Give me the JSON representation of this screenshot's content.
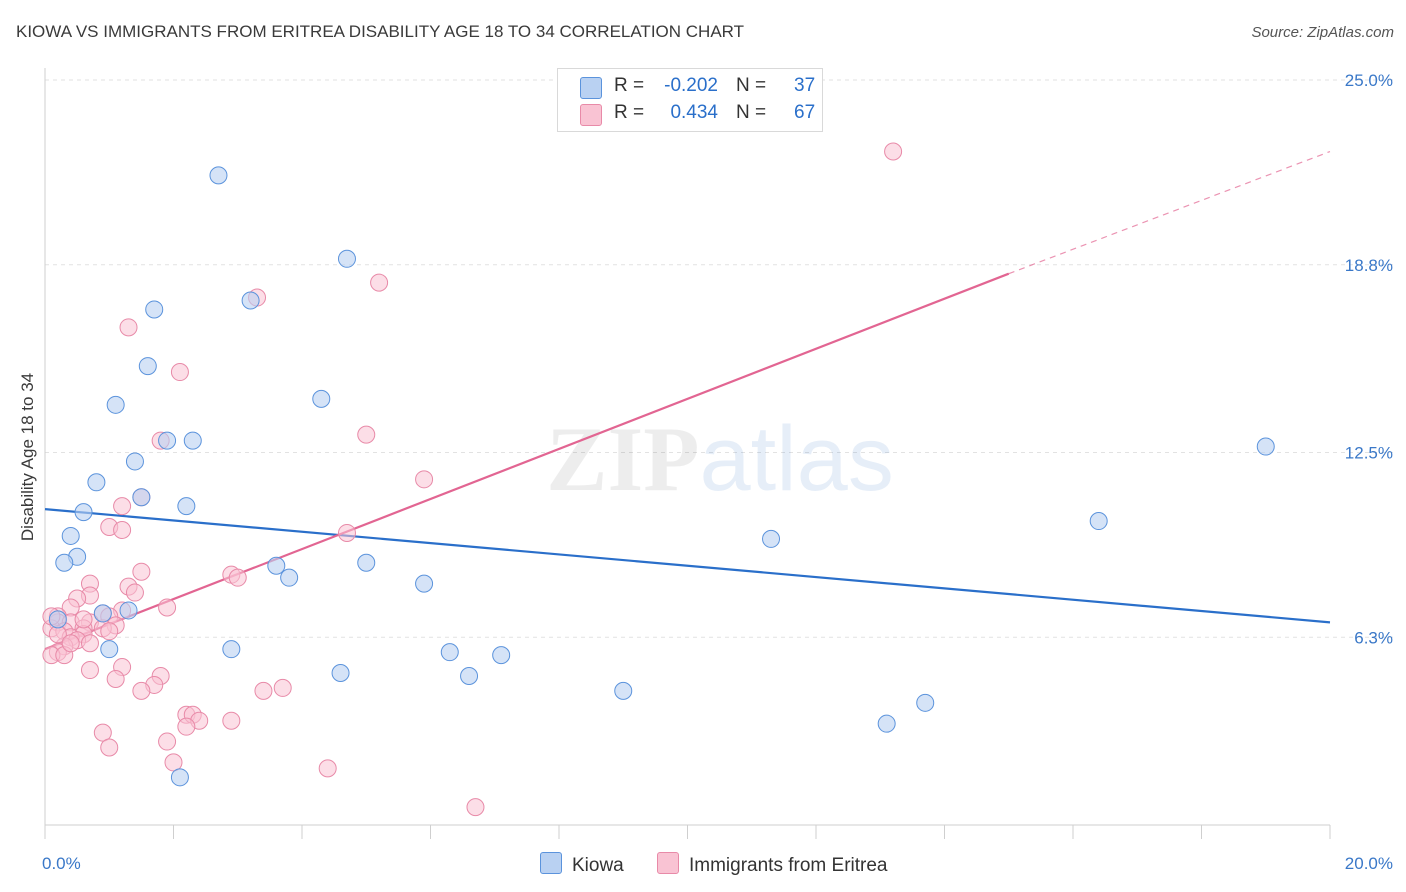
{
  "header": {
    "title": "KIOWA VS IMMIGRANTS FROM ERITREA DISABILITY AGE 18 TO 34 CORRELATION CHART",
    "source": "Source: ZipAtlas.com"
  },
  "legend": {
    "rows": [
      {
        "r_label": "R =",
        "r_value": "-0.202",
        "n_label": "N =",
        "n_value": "37"
      },
      {
        "r_label": "R =",
        "r_value": "0.434",
        "n_label": "N =",
        "n_value": "67"
      }
    ],
    "bottom": [
      "Kiowa",
      "Immigrants from Eritrea"
    ]
  },
  "colors": {
    "kiowa_fill": "#b9d1f2",
    "kiowa_stroke": "#5b93dc",
    "kiowa_line": "#2a6fca",
    "eritrea_fill": "#f9c3d3",
    "eritrea_stroke": "#e88aa8",
    "eritrea_line": "#e26592",
    "tick_label": "#3a78c8",
    "grid": "#e2e2e2"
  },
  "chart_data": {
    "type": "scatter",
    "title": "KIOWA VS IMMIGRANTS FROM ERITREA DISABILITY AGE 18 TO 34 CORRELATION CHART",
    "xlabel": "",
    "ylabel": "Disability Age 18 to 34",
    "xlim": [
      0,
      20
    ],
    "ylim": [
      0,
      25
    ],
    "x_tick_labels": [
      "0.0%",
      "20.0%"
    ],
    "y_ticks": [
      6.3,
      12.5,
      18.8,
      25.0
    ],
    "y_tick_labels": [
      "6.3%",
      "12.5%",
      "18.8%",
      "25.0%"
    ],
    "grid": true,
    "legend_position": "top-center",
    "watermark": "ZIPatlas",
    "series": [
      {
        "name": "Kiowa",
        "r": -0.202,
        "n": 37,
        "trend": {
          "x": [
            0,
            20
          ],
          "y": [
            10.6,
            6.8
          ]
        },
        "points": [
          [
            2.7,
            21.8
          ],
          [
            4.7,
            19.0
          ],
          [
            1.7,
            17.3
          ],
          [
            3.2,
            17.6
          ],
          [
            1.6,
            15.4
          ],
          [
            1.1,
            14.1
          ],
          [
            4.3,
            14.3
          ],
          [
            1.9,
            12.9
          ],
          [
            2.3,
            12.9
          ],
          [
            1.4,
            12.2
          ],
          [
            0.8,
            11.5
          ],
          [
            1.5,
            11.0
          ],
          [
            2.2,
            10.7
          ],
          [
            0.6,
            10.5
          ],
          [
            0.4,
            9.7
          ],
          [
            0.5,
            9.0
          ],
          [
            0.3,
            8.8
          ],
          [
            3.6,
            8.7
          ],
          [
            3.8,
            8.3
          ],
          [
            5.0,
            8.8
          ],
          [
            5.9,
            8.1
          ],
          [
            1.3,
            7.2
          ],
          [
            0.9,
            7.1
          ],
          [
            0.2,
            6.9
          ],
          [
            1.0,
            5.9
          ],
          [
            2.9,
            5.9
          ],
          [
            6.3,
            5.8
          ],
          [
            7.1,
            5.7
          ],
          [
            4.6,
            5.1
          ],
          [
            6.6,
            5.0
          ],
          [
            9.0,
            4.5
          ],
          [
            11.3,
            9.6
          ],
          [
            13.7,
            4.1
          ],
          [
            13.1,
            3.4
          ],
          [
            16.4,
            10.2
          ],
          [
            19.0,
            12.7
          ],
          [
            2.1,
            1.6
          ]
        ]
      },
      {
        "name": "Immigrants from Eritrea",
        "r": 0.434,
        "n": 67,
        "trend": {
          "x": [
            0,
            15
          ],
          "y": [
            5.9,
            18.5
          ]
        },
        "trend_dashed": {
          "x": [
            15,
            20
          ],
          "y": [
            18.5,
            22.6
          ]
        },
        "points": [
          [
            13.2,
            22.6
          ],
          [
            5.2,
            18.2
          ],
          [
            3.3,
            17.7
          ],
          [
            1.3,
            16.7
          ],
          [
            2.1,
            15.2
          ],
          [
            5.0,
            13.1
          ],
          [
            1.8,
            12.9
          ],
          [
            5.9,
            11.6
          ],
          [
            1.5,
            11.0
          ],
          [
            1.2,
            10.7
          ],
          [
            1.0,
            10.0
          ],
          [
            1.2,
            9.9
          ],
          [
            4.7,
            9.8
          ],
          [
            1.5,
            8.5
          ],
          [
            2.9,
            8.4
          ],
          [
            3.0,
            8.3
          ],
          [
            0.7,
            8.1
          ],
          [
            1.3,
            8.0
          ],
          [
            1.4,
            7.8
          ],
          [
            0.7,
            7.7
          ],
          [
            0.5,
            7.6
          ],
          [
            0.4,
            7.3
          ],
          [
            1.9,
            7.3
          ],
          [
            1.2,
            7.2
          ],
          [
            0.9,
            7.1
          ],
          [
            0.2,
            7.0
          ],
          [
            1.0,
            7.0
          ],
          [
            0.7,
            6.8
          ],
          [
            0.2,
            6.8
          ],
          [
            0.4,
            6.8
          ],
          [
            1.1,
            6.7
          ],
          [
            0.6,
            6.6
          ],
          [
            0.1,
            6.6
          ],
          [
            0.9,
            6.6
          ],
          [
            0.3,
            6.5
          ],
          [
            0.6,
            6.4
          ],
          [
            0.4,
            6.3
          ],
          [
            0.5,
            6.2
          ],
          [
            0.7,
            6.1
          ],
          [
            0.3,
            6.0
          ],
          [
            0.2,
            5.8
          ],
          [
            0.1,
            5.7
          ],
          [
            0.3,
            5.7
          ],
          [
            0.7,
            5.2
          ],
          [
            1.2,
            5.3
          ],
          [
            1.8,
            5.0
          ],
          [
            1.1,
            4.9
          ],
          [
            1.7,
            4.7
          ],
          [
            1.5,
            4.5
          ],
          [
            3.4,
            4.5
          ],
          [
            3.7,
            4.6
          ],
          [
            2.2,
            3.7
          ],
          [
            2.3,
            3.7
          ],
          [
            2.4,
            3.5
          ],
          [
            2.2,
            3.3
          ],
          [
            2.9,
            3.5
          ],
          [
            0.9,
            3.1
          ],
          [
            1.0,
            2.6
          ],
          [
            1.9,
            2.8
          ],
          [
            2.0,
            2.1
          ],
          [
            4.4,
            1.9
          ],
          [
            6.7,
            0.6
          ],
          [
            0.2,
            6.4
          ],
          [
            0.4,
            6.1
          ],
          [
            0.6,
            6.9
          ],
          [
            1.0,
            6.5
          ],
          [
            0.1,
            7.0
          ]
        ]
      }
    ]
  }
}
